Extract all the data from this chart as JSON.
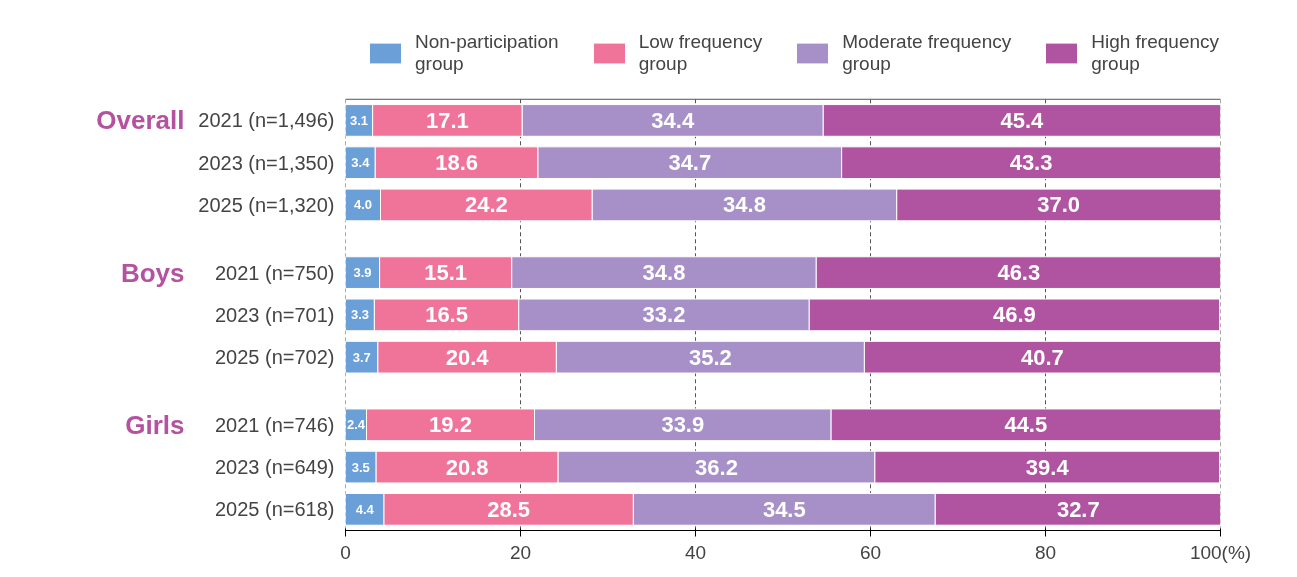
{
  "chart_data": {
    "type": "bar",
    "orientation": "horizontal",
    "stacked": true,
    "categories": [
      "2021 (n=1,496)",
      "2023 (n=1,350)",
      "2025 (n=1,320)",
      "2021 (n=750)",
      "2023 (n=701)",
      "2025 (n=702)",
      "2021 (n=746)",
      "2023 (n=649)",
      "2025 (n=618)"
    ],
    "series": [
      {
        "name": "Non-participation group",
        "color": "#6a9fd8",
        "values": [
          3.1,
          3.4,
          4.0,
          3.9,
          3.3,
          3.7,
          2.4,
          3.5,
          4.4
        ],
        "value_labels": [
          "3.1",
          "3.4",
          "4.0",
          "3.9",
          "3.3",
          "3.7",
          "2.4",
          "3.5",
          "4.4"
        ]
      },
      {
        "name": "Low frequency group",
        "color": "#f07399",
        "values": [
          17.1,
          18.6,
          24.2,
          15.1,
          16.5,
          20.4,
          19.2,
          20.8,
          28.5
        ],
        "value_labels": [
          "17.1",
          "18.6",
          "24.2",
          "15.1",
          "16.5",
          "20.4",
          "19.2",
          "20.8",
          "28.5"
        ]
      },
      {
        "name": "Moderate frequency group",
        "color": "#a78fc7",
        "values": [
          34.4,
          34.7,
          34.8,
          34.8,
          33.2,
          35.2,
          33.9,
          36.2,
          34.5
        ],
        "value_labels": [
          "34.4",
          "34.7",
          "34.8",
          "34.8",
          "33.2",
          "35.2",
          "33.9",
          "36.2",
          "34.5"
        ]
      },
      {
        "name": "High frequency group",
        "color": "#b054a2",
        "values": [
          45.4,
          43.3,
          37.0,
          46.3,
          46.9,
          40.7,
          44.5,
          39.4,
          32.7
        ],
        "value_labels": [
          "45.4",
          "43.3",
          "37.0",
          "46.3",
          "46.9",
          "40.7",
          "44.5",
          "39.4",
          "32.7"
        ]
      }
    ],
    "annotations": [
      "Overall",
      "Boys",
      "Girls"
    ],
    "xlim": [
      0,
      100
    ],
    "xticks": [
      0,
      20,
      40,
      60,
      80,
      {
        "value": 100,
        "label": "100(%)"
      }
    ],
    "grid": "x",
    "legend": "top",
    "data_labels": true
  }
}
